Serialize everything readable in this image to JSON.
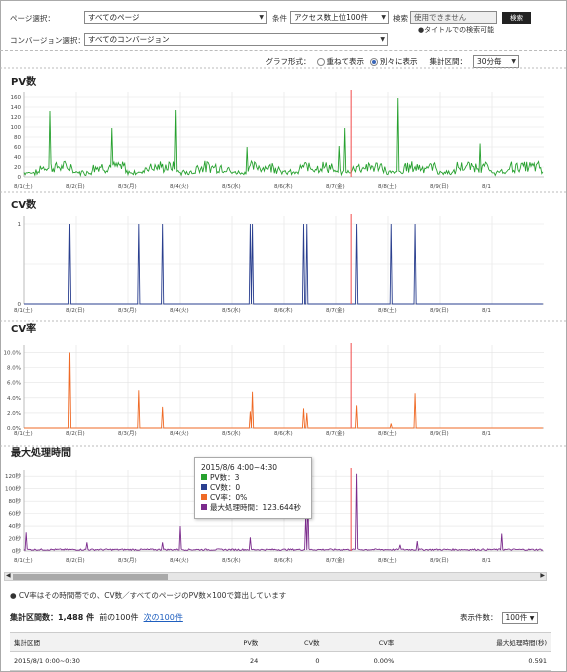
{
  "filters": {
    "page_label": "ページ選択：",
    "page_value": "すべてのページ",
    "condition_label": "条件",
    "condition_value": "アクセス数上位100件",
    "search_label": "検索",
    "search_value": "使用できません",
    "search_button": "検索",
    "search_note": "●タイトルでの検索可能",
    "conversion_label": "コンバージョン選択：",
    "conversion_value": "すべてのコンバージョン"
  },
  "graph_options": {
    "format_label": "グラフ形式：",
    "option_overlay": "重ねて表示",
    "option_separate": "別々に表示",
    "interval_label": "集計区間：",
    "interval_value": "30分毎"
  },
  "x_tick_labels": [
    "8/1(土)",
    "8/2(日)",
    "8/3(月)",
    "8/4(火)",
    "8/5(水)",
    "8/6(木)",
    "8/7(金)",
    "8/8(土)",
    "8/9(日)",
    "8/1"
  ],
  "colors": {
    "pv": "#27a12f",
    "cv": "#2a3f8f",
    "cvr": "#ef6a26",
    "maxtime": "#7b2b8c",
    "marker": "#f25c5c",
    "grid": "#e3e3e3"
  },
  "charts": {
    "pv": {
      "title": "PV数",
      "y_ticks": [
        "160",
        "140",
        "120",
        "100",
        "80",
        "60",
        "40",
        "20",
        "0"
      ],
      "ylim": [
        0,
        170
      ],
      "spikes": [
        [
          24,
          132
        ],
        [
          81,
          98
        ],
        [
          140,
          134
        ],
        [
          206,
          60
        ],
        [
          291,
          62
        ],
        [
          296,
          98
        ],
        [
          345,
          158
        ],
        [
          421,
          67
        ]
      ]
    },
    "cv": {
      "title": "CV数",
      "y_ticks": [
        "1",
        "",
        "0"
      ],
      "ylim": [
        0,
        1.1
      ],
      "spikes": [
        [
          42,
          1
        ],
        [
          106,
          1
        ],
        [
          128,
          1
        ],
        [
          209,
          1
        ],
        [
          211,
          1
        ],
        [
          258,
          1
        ],
        [
          261,
          1
        ],
        [
          307,
          1
        ],
        [
          339,
          1
        ],
        [
          361,
          1
        ]
      ]
    },
    "cvr": {
      "title": "CV率",
      "y_ticks": [
        "10.0%",
        "8.0%",
        "6.0%",
        "4.0%",
        "2.0%",
        "0.0%"
      ],
      "ylim": [
        0,
        11
      ],
      "spikes": [
        [
          42,
          10.0
        ],
        [
          106,
          5.0
        ],
        [
          128,
          2.8
        ],
        [
          209,
          2.2
        ],
        [
          211,
          4.8
        ],
        [
          258,
          2.6
        ],
        [
          261,
          2.0
        ],
        [
          307,
          3.0
        ],
        [
          339,
          0.6
        ],
        [
          361,
          4.6
        ]
      ]
    },
    "maxtime": {
      "title": "最大処理時間",
      "y_ticks": [
        "120秒",
        "100秒",
        "80秒",
        "60秒",
        "40秒",
        "20秒",
        "0秒"
      ],
      "ylim": [
        0,
        130
      ],
      "spikes": [
        [
          2,
          30
        ],
        [
          58,
          14
        ],
        [
          128,
          14
        ],
        [
          144,
          40
        ],
        [
          209,
          22
        ],
        [
          260,
          60
        ],
        [
          262,
          80
        ],
        [
          307,
          124
        ],
        [
          347,
          10
        ],
        [
          363,
          16
        ],
        [
          441,
          28
        ]
      ]
    }
  },
  "tooltip": {
    "title": "2015/8/6 4:00~4:30",
    "pv": "PV数：3",
    "cv": "CV数：0",
    "cvr": "CV率：0%",
    "maxtime": "最大処理時間：123.644秒"
  },
  "footnote": "● CV率はその時間帯での、CV数／すべてのページのPV数×100で算出しています",
  "summary": {
    "label": "集計区間数：",
    "count": "1,488 件",
    "prev": "前の100件",
    "next": "次の100件"
  },
  "per_page": {
    "label": "表示件数：",
    "value": "100件"
  },
  "table": {
    "headers": [
      "集計区間",
      "PV数",
      "CV数",
      "CV率",
      "最大処理時間(秒)"
    ],
    "rows": [
      [
        "2015/8/1 0:00~0:30",
        "24",
        "0",
        "0.00%",
        "0.591"
      ]
    ]
  }
}
